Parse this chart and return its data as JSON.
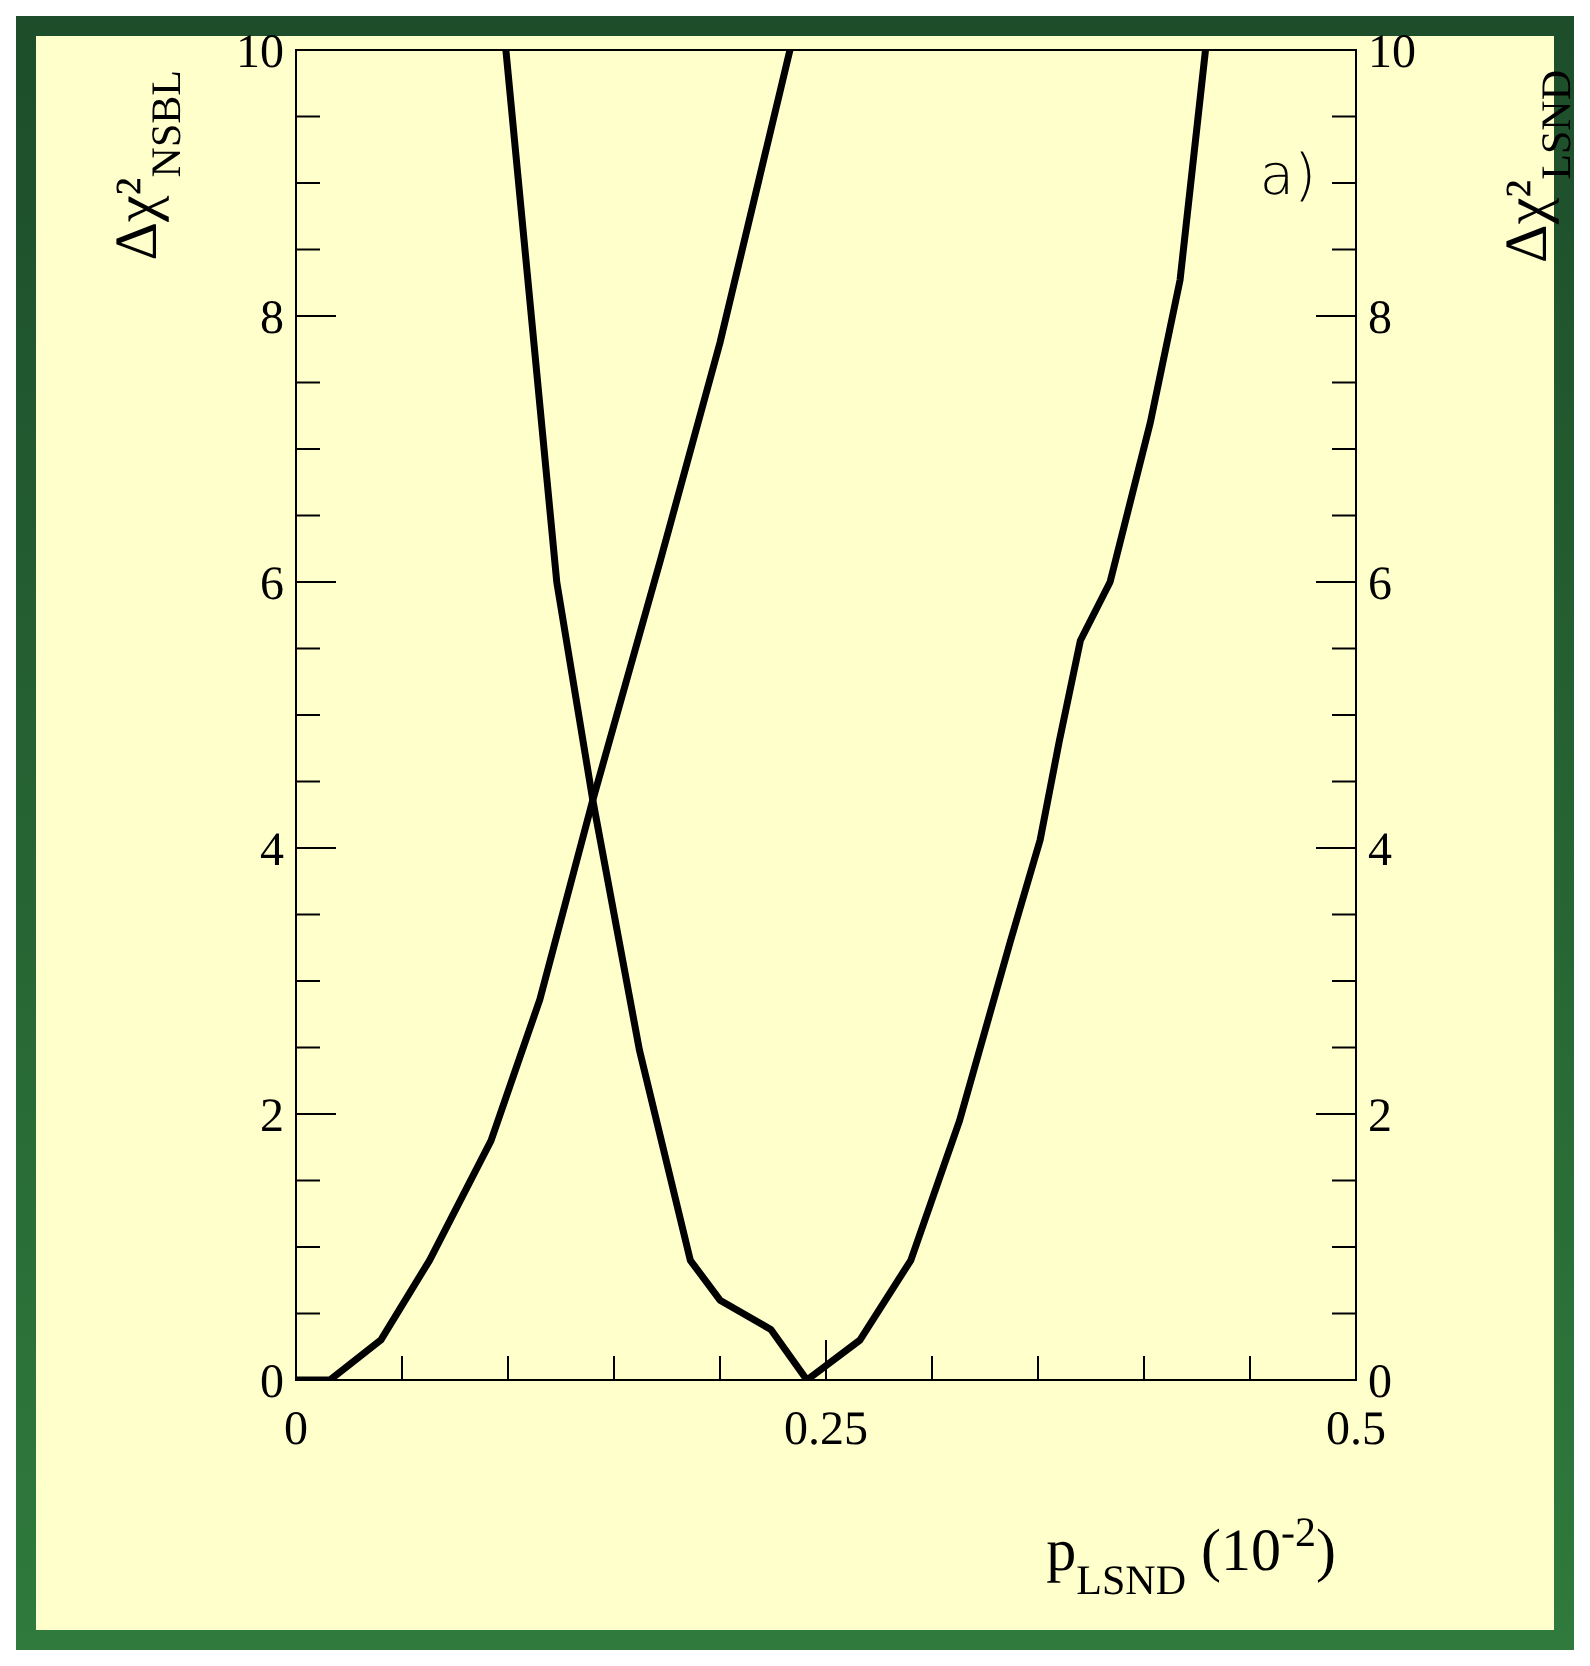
{
  "chart_data": {
    "type": "line",
    "xlabel": "p$_{LSND}$ (10$^{-2}$)",
    "ylabel": "Δχ²$_{NSBL}$",
    "y2label": "Δχ²$_{LSND}$",
    "annotations": [
      "a)"
    ],
    "xlim": [
      0,
      0.5
    ],
    "xticks": [
      0,
      {
        "value": 0.05,
        "label": null
      },
      {
        "value": 0.1,
        "label": null
      },
      {
        "value": 0.15,
        "label": null
      },
      {
        "value": 0.2,
        "label": null
      },
      0.25,
      {
        "value": 0.3,
        "label": null
      },
      {
        "value": 0.35,
        "label": null
      },
      {
        "value": 0.4,
        "label": null
      },
      {
        "value": 0.45,
        "label": null
      },
      0.5
    ],
    "ylim": [
      0,
      10
    ],
    "yticks": [
      0,
      {
        "value": 0.5,
        "label": null
      },
      {
        "value": 1,
        "label": null
      },
      {
        "value": 1.5,
        "label": null
      },
      2,
      {
        "value": 2.5,
        "label": null
      },
      {
        "value": 3,
        "label": null
      },
      {
        "value": 3.5,
        "label": null
      },
      4,
      {
        "value": 4.5,
        "label": null
      },
      {
        "value": 5,
        "label": null
      },
      {
        "value": 5.5,
        "label": null
      },
      6,
      {
        "value": 6.5,
        "label": null
      },
      {
        "value": 7,
        "label": null
      },
      {
        "value": 7.5,
        "label": null
      },
      8,
      {
        "value": 8.5,
        "label": null
      },
      {
        "value": 9,
        "label": null
      },
      {
        "value": 9.5,
        "label": null
      },
      10
    ],
    "y2lim": [
      0,
      10
    ],
    "y2ticks": [
      0,
      {
        "value": 0.5,
        "label": null
      },
      {
        "value": 1,
        "label": null
      },
      {
        "value": 1.5,
        "label": null
      },
      2,
      {
        "value": 2.5,
        "label": null
      },
      {
        "value": 3,
        "label": null
      },
      {
        "value": 3.5,
        "label": null
      },
      4,
      {
        "value": 4.5,
        "label": null
      },
      {
        "value": 5,
        "label": null
      },
      {
        "value": 5.5,
        "label": null
      },
      6,
      {
        "value": 6.5,
        "label": null
      },
      {
        "value": 7,
        "label": null
      },
      {
        "value": 7.5,
        "label": null
      },
      8,
      {
        "value": 8.5,
        "label": null
      },
      {
        "value": 9,
        "label": null
      },
      {
        "value": 9.5,
        "label": null
      },
      10
    ],
    "grid": false,
    "marker": "none",
    "line_style": "solid",
    "series": [
      {
        "color": "#000000",
        "x": [
          0.0,
          0.016,
          0.04,
          0.063,
          0.092,
          0.115,
          0.14,
          0.172,
          0.2,
          0.233
        ],
        "values": [
          0,
          0,
          0.3,
          0.9,
          1.8,
          2.86,
          4.36,
          6.17,
          7.8,
          10
        ]
      },
      {
        "color": "#000000",
        "x": [
          0.099,
          0.123,
          0.14,
          0.162,
          0.186,
          0.2,
          0.224,
          0.241,
          0.266,
          0.29,
          0.313,
          0.337,
          0.351,
          0.36,
          0.37,
          0.384,
          0.403,
          0.417,
          0.429
        ],
        "values": [
          10,
          6.0,
          4.36,
          2.48,
          0.9,
          0.6,
          0.38,
          0,
          0.3,
          0.9,
          1.95,
          3.3,
          4.06,
          4.8,
          5.56,
          6.0,
          7.2,
          8.27,
          10
        ]
      }
    ]
  }
}
